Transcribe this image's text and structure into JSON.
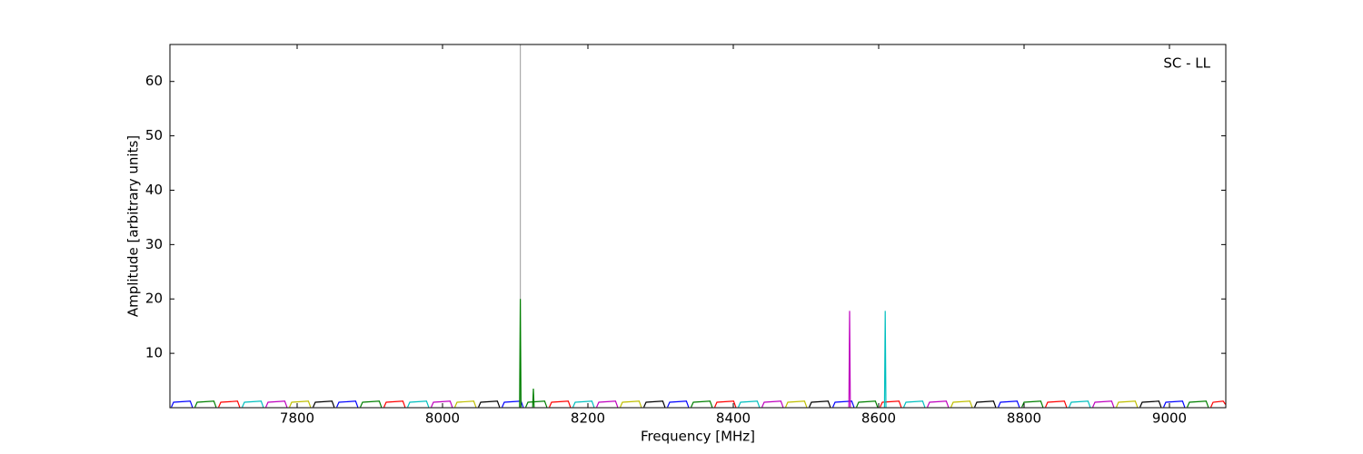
{
  "chart_data": {
    "type": "line",
    "xlabel": "Frequency [MHz]",
    "ylabel": "Amplitude [arbitrary units]",
    "annotation": "SC - LL",
    "xlim": [
      7625,
      9077.5
    ],
    "ylim": [
      0,
      66.8
    ],
    "xticks": [
      7800,
      8000,
      8200,
      8400,
      8600,
      8800,
      9000
    ],
    "yticks": [
      10,
      20,
      30,
      40,
      50,
      60
    ],
    "series": [
      {
        "color": "#0000ff",
        "x": [
          7627,
          7630,
          7653,
          7656,
          null,
          7854.5,
          7857.5,
          7880.5,
          7883.5,
          null,
          8082,
          8085,
          8108,
          8111,
          null,
          8309.5,
          8312.5,
          8335.5,
          8338.5,
          null,
          8537,
          8540,
          8563,
          8566,
          null,
          8764.5,
          8767.5,
          8790.5,
          8793.5,
          null,
          8992,
          8995,
          9018,
          9021
        ],
        "values": [
          0.1,
          1,
          1.2,
          0.1,
          null,
          0.1,
          1,
          1.2,
          0.1,
          null,
          0.1,
          1,
          1.2,
          0.1,
          null,
          0.1,
          1,
          1.2,
          0.1,
          null,
          0.1,
          1,
          1.2,
          0.1,
          null,
          0.1,
          1,
          1.2,
          0.1,
          null,
          0.1,
          1,
          1.2,
          0.1
        ]
      },
      {
        "color": "#008000",
        "x": [
          7659.5,
          7662.5,
          7685.5,
          7688.5,
          null,
          7887,
          7890,
          7913,
          7916,
          null,
          8114.5,
          8117.5,
          8140.5,
          8143.5,
          null,
          8342,
          8345,
          8368,
          8371,
          null,
          8569.5,
          8572.5,
          8595.5,
          8598.5,
          null,
          8797,
          8800,
          8823,
          8826,
          null,
          9024.5,
          9027.5,
          9050.5,
          9053.5
        ],
        "values": [
          0.1,
          1,
          1.2,
          0.1,
          null,
          0.1,
          1,
          1.2,
          0.1,
          null,
          0.1,
          1,
          1.2,
          0.1,
          null,
          0.1,
          1,
          1.2,
          0.1,
          null,
          0.1,
          1,
          1.2,
          0.1,
          null,
          0.1,
          1,
          1.2,
          0.1,
          null,
          0.1,
          1,
          1.2,
          0.1
        ]
      },
      {
        "color": "#ff0000",
        "x": [
          7692,
          7695,
          7718,
          7721,
          null,
          7919.5,
          7922.5,
          7945.5,
          7948.5,
          null,
          8147,
          8150,
          8173,
          8176,
          null,
          8374.5,
          8377.5,
          8400.5,
          8403.5,
          null,
          8602,
          8605,
          8628,
          8631,
          null,
          8829.5,
          8832.5,
          8855.5,
          8858.5,
          null,
          9057,
          9060,
          9074,
          9077
        ],
        "values": [
          0.1,
          1,
          1.2,
          0.1,
          null,
          0.1,
          1,
          1.2,
          0.1,
          null,
          0.1,
          1,
          1.2,
          0.1,
          null,
          0.1,
          1,
          1.2,
          0.1,
          null,
          0.1,
          1,
          1.2,
          0.1,
          null,
          0.1,
          1,
          1.2,
          0.1,
          null,
          0.1,
          1,
          1.2,
          0.6
        ]
      },
      {
        "color": "#00bfbf",
        "x": [
          7724.5,
          7727.5,
          7750.5,
          7753.5,
          null,
          7952,
          7955,
          7978,
          7981,
          null,
          8179.5,
          8182.5,
          8205.5,
          8208.5,
          null,
          8407,
          8410,
          8433,
          8436,
          null,
          8634.5,
          8637.5,
          8660.5,
          8663.5,
          null,
          8862,
          8865,
          8888,
          8891
        ],
        "values": [
          0.1,
          1,
          1.2,
          0.1,
          null,
          0.1,
          1,
          1.2,
          0.1,
          null,
          0.1,
          1,
          1.2,
          0.1,
          null,
          0.1,
          1,
          1.2,
          0.1,
          null,
          0.1,
          1,
          1.2,
          0.1,
          null,
          0.1,
          1,
          1.2,
          0.1
        ]
      },
      {
        "color": "#bf00bf",
        "x": [
          7757,
          7760,
          7783,
          7786,
          null,
          7984.5,
          7987.5,
          8010.5,
          8013.5,
          null,
          8212,
          8215,
          8238,
          8241,
          null,
          8439.5,
          8442.5,
          8465.5,
          8468.5,
          null,
          8667,
          8670,
          8693,
          8696,
          null,
          8894.5,
          8897.5,
          8920.5,
          8923.5
        ],
        "values": [
          0.1,
          1,
          1.2,
          0.1,
          null,
          0.1,
          1,
          1.2,
          0.1,
          null,
          0.1,
          1,
          1.2,
          0.1,
          null,
          0.1,
          1,
          1.2,
          0.1,
          null,
          0.1,
          1,
          1.2,
          0.1,
          null,
          0.1,
          1,
          1.2,
          0.1
        ]
      },
      {
        "color": "#bfbf00",
        "x": [
          7789.5,
          7792.5,
          7815.5,
          7818.5,
          null,
          8017,
          8020,
          8043,
          8046,
          null,
          8244.5,
          8247.5,
          8270.5,
          8273.5,
          null,
          8472,
          8475,
          8498,
          8501,
          null,
          8699.5,
          8702.5,
          8725.5,
          8728.5,
          null,
          8927,
          8930,
          8953,
          8956
        ],
        "values": [
          0.1,
          1,
          1.2,
          0.1,
          null,
          0.1,
          1,
          1.2,
          0.1,
          null,
          0.1,
          1,
          1.2,
          0.1,
          null,
          0.1,
          1,
          1.2,
          0.1,
          null,
          0.1,
          1,
          1.2,
          0.1,
          null,
          0.1,
          1,
          1.2,
          0.1
        ]
      },
      {
        "color": "#000000",
        "x": [
          7822,
          7825,
          7848,
          7851,
          null,
          8049.5,
          8052.5,
          8075.5,
          8078.5,
          null,
          8277,
          8280,
          8303,
          8306,
          null,
          8504.5,
          8507.5,
          8530.5,
          8533.5,
          null,
          8732,
          8735,
          8758,
          8761,
          null,
          8959.5,
          8962.5,
          8985.5,
          8988.5
        ],
        "values": [
          0.1,
          1,
          1.2,
          0.1,
          null,
          0.1,
          1,
          1.2,
          0.1,
          null,
          0.1,
          1,
          1.2,
          0.1,
          null,
          0.1,
          1,
          1.2,
          0.1,
          null,
          0.1,
          1,
          1.2,
          0.1,
          null,
          0.1,
          1,
          1.2,
          0.1
        ]
      },
      {
        "color": "#aaaaaa",
        "x": [
          8107,
          8107
        ],
        "values": [
          0,
          66.8
        ]
      },
      {
        "color": "#008000",
        "x": [
          8106,
          8107,
          8108,
          null,
          8124,
          8125,
          8126
        ],
        "values": [
          0.1,
          20,
          0.1,
          null,
          0.1,
          3.5,
          0.1
        ]
      },
      {
        "color": "#bf00bf",
        "x": [
          8559,
          8560,
          8561
        ],
        "values": [
          0.1,
          17.8,
          0.1
        ]
      },
      {
        "color": "#00bfbf",
        "x": [
          8608,
          8609,
          8610
        ],
        "values": [
          0.1,
          17.8,
          0.1
        ]
      }
    ]
  }
}
